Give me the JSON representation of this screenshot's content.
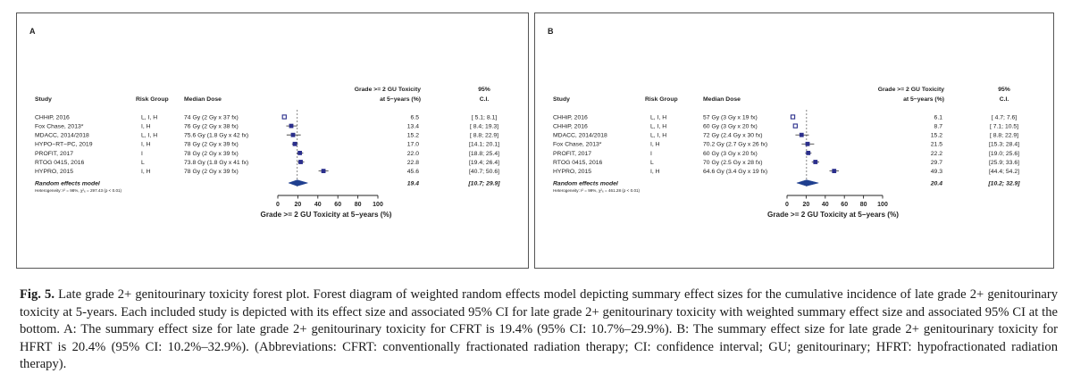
{
  "figure": {
    "caption_label": "Fig. 5.",
    "caption_text": "Late grade 2+ genitourinary toxicity forest plot. Forest diagram of weighted random effects model depicting summary effect sizes for the cumulative incidence of late grade 2+ genitourinary toxicity at 5-years. Each included study is depicted with its effect size and associated 95% CI for late grade 2+ genitourinary toxicity with weighted summary effect size and associated 95% CI at the bottom. A: The summary effect size for late grade 2+ genitourinary toxicity for CFRT is 19.4% (95% CI: 10.7%–29.9%). B: The summary effect size for late grade 2+ genitourinary toxicity for HFRT is 20.4% (95% CI: 10.2%–32.9%). (Abbreviations: CFRT: conventionally fractionated radiation therapy; CI: confidence interval; GU; genitourinary; HFRT: hypofractionated radiation therapy)."
  },
  "colors": {
    "study_marker": "#2b2f8c",
    "summary_diamond": "#1f3f8f",
    "reference_line": "#666666"
  },
  "chart_data": [
    {
      "type": "forest",
      "panel_label": "A",
      "headers": {
        "study": "Study",
        "risk": "Risk Group",
        "dose": "Median Dose",
        "effect_line1": "Grade >= 2 GU Toxicity",
        "effect_line2": "at 5−years (%)",
        "ci_line1": "95%",
        "ci_line2": "C.I."
      },
      "studies": [
        {
          "name": "CHHiP, 2016",
          "risk": "L, I, H",
          "dose": "74 Gy (2 Gy x 37 fx)",
          "effect": 6.5,
          "effect_text": "6.5",
          "lo": 5.1,
          "hi": 8.1,
          "ci_text": "[ 5.1;  8.1]",
          "marker": "open"
        },
        {
          "name": "Fox Chase, 2013*",
          "risk": "I, H",
          "dose": "76 Gy (2 Gy x 38 fx)",
          "effect": 13.4,
          "effect_text": "13.4",
          "lo": 8.4,
          "hi": 19.3,
          "ci_text": "[ 8.4; 19.3]",
          "marker": "filled"
        },
        {
          "name": "MDACC, 2014/2018",
          "risk": "L, I, H",
          "dose": "75.6 Gy (1.8 Gy x 42 fx)",
          "effect": 15.2,
          "effect_text": "15.2",
          "lo": 8.8,
          "hi": 22.9,
          "ci_text": "[ 8.8; 22.9]",
          "marker": "filled"
        },
        {
          "name": "HYPO−RT−PC, 2019",
          "risk": "I, H",
          "dose": "78 Gy (2 Gy x 39 fx)",
          "effect": 17.0,
          "effect_text": "17.0",
          "lo": 14.1,
          "hi": 20.1,
          "ci_text": "[14.1; 20.1]",
          "marker": "filled"
        },
        {
          "name": "PROFIT, 2017",
          "risk": "I",
          "dose": "78 Gy (2 Gy x 39 fx)",
          "effect": 22.0,
          "effect_text": "22.0",
          "lo": 18.8,
          "hi": 25.4,
          "ci_text": "[18.8; 25.4]",
          "marker": "filled"
        },
        {
          "name": "RTOG 0415, 2016",
          "risk": "L",
          "dose": "73.8 Gy (1.8 Gy x 41 fx)",
          "effect": 22.8,
          "effect_text": "22.8",
          "lo": 19.4,
          "hi": 26.4,
          "ci_text": "[19.4; 26.4]",
          "marker": "filled"
        },
        {
          "name": "HYPRO, 2015",
          "risk": "I, H",
          "dose": "78 Gy (2 Gy x 39 fx)",
          "effect": 45.6,
          "effect_text": "45.6",
          "lo": 40.7,
          "hi": 50.6,
          "ci_text": "[40.7; 50.6]",
          "marker": "filled"
        }
      ],
      "summary": {
        "label": "Random effects model",
        "effect": 19.4,
        "effect_text": "19.4",
        "lo": 10.7,
        "hi": 29.9,
        "ci_text": "[10.7; 29.9]",
        "heterogeneity": "Heterogeneity: I² = 98%, χ²₆ = 297.43 (p < 0.01)"
      },
      "xlim": [
        0,
        100
      ],
      "xticks": [
        0,
        20,
        40,
        60,
        80,
        100
      ],
      "xlabel": "Grade >= 2 GU Toxicity at 5−years (%)"
    },
    {
      "type": "forest",
      "panel_label": "B",
      "headers": {
        "study": "Study",
        "risk": "Risk Group",
        "dose": "Median Dose",
        "effect_line1": "Grade >= 2 GU Toxicity",
        "effect_line2": "at 5−years (%)",
        "ci_line1": "95%",
        "ci_line2": "C.I."
      },
      "studies": [
        {
          "name": "CHHiP, 2016",
          "risk": "L, I, H",
          "dose": "57 Gy (3 Gy x 19 fx)",
          "effect": 6.1,
          "effect_text": "6.1",
          "lo": 4.7,
          "hi": 7.6,
          "ci_text": "[ 4.7;  7.6]",
          "marker": "open"
        },
        {
          "name": "CHHiP, 2016",
          "risk": "L, I, H",
          "dose": "60 Gy (3 Gy x 20 fx)",
          "effect": 8.7,
          "effect_text": "8.7",
          "lo": 7.1,
          "hi": 10.5,
          "ci_text": "[ 7.1; 10.5]",
          "marker": "open"
        },
        {
          "name": "MDACC, 2014/2018",
          "risk": "L, I, H",
          "dose": "72 Gy (2.4 Gy x 30 fx)",
          "effect": 15.2,
          "effect_text": "15.2",
          "lo": 8.8,
          "hi": 22.9,
          "ci_text": "[ 8.8; 22.9]",
          "marker": "filled"
        },
        {
          "name": "Fox Chase, 2013*",
          "risk": "I, H",
          "dose": "70.2 Gy (2.7 Gy x 26 fx)",
          "effect": 21.5,
          "effect_text": "21.5",
          "lo": 15.3,
          "hi": 28.4,
          "ci_text": "[15.3; 28.4]",
          "marker": "filled"
        },
        {
          "name": "PROFIT, 2017",
          "risk": "I",
          "dose": "60 Gy (3 Gy x 20 fx)",
          "effect": 22.2,
          "effect_text": "22.2",
          "lo": 19.0,
          "hi": 25.6,
          "ci_text": "[19.0; 25.6]",
          "marker": "filled"
        },
        {
          "name": "RTOG 0415, 2016",
          "risk": "L",
          "dose": "70 Gy (2.5 Gy x 28 fx)",
          "effect": 29.7,
          "effect_text": "29.7",
          "lo": 25.9,
          "hi": 33.6,
          "ci_text": "[25.9; 33.6]",
          "marker": "filled"
        },
        {
          "name": "HYPRO, 2015",
          "risk": "I, H",
          "dose": "64.6 Gy (3.4 Gy x 19 fx)",
          "effect": 49.3,
          "effect_text": "49.3",
          "lo": 44.4,
          "hi": 54.2,
          "ci_text": "[44.4; 54.2]",
          "marker": "filled"
        }
      ],
      "summary": {
        "label": "Random effects model",
        "effect": 20.4,
        "effect_text": "20.4",
        "lo": 10.2,
        "hi": 32.9,
        "ci_text": "[10.2; 32.9]",
        "heterogeneity": "Heterogeneity: I² = 99%, χ²₆ = 461.28 (p < 0.01)"
      },
      "xlim": [
        0,
        100
      ],
      "xticks": [
        0,
        20,
        40,
        60,
        80,
        100
      ],
      "xlabel": "Grade >= 2 GU Toxicity at 5−years (%)"
    }
  ]
}
